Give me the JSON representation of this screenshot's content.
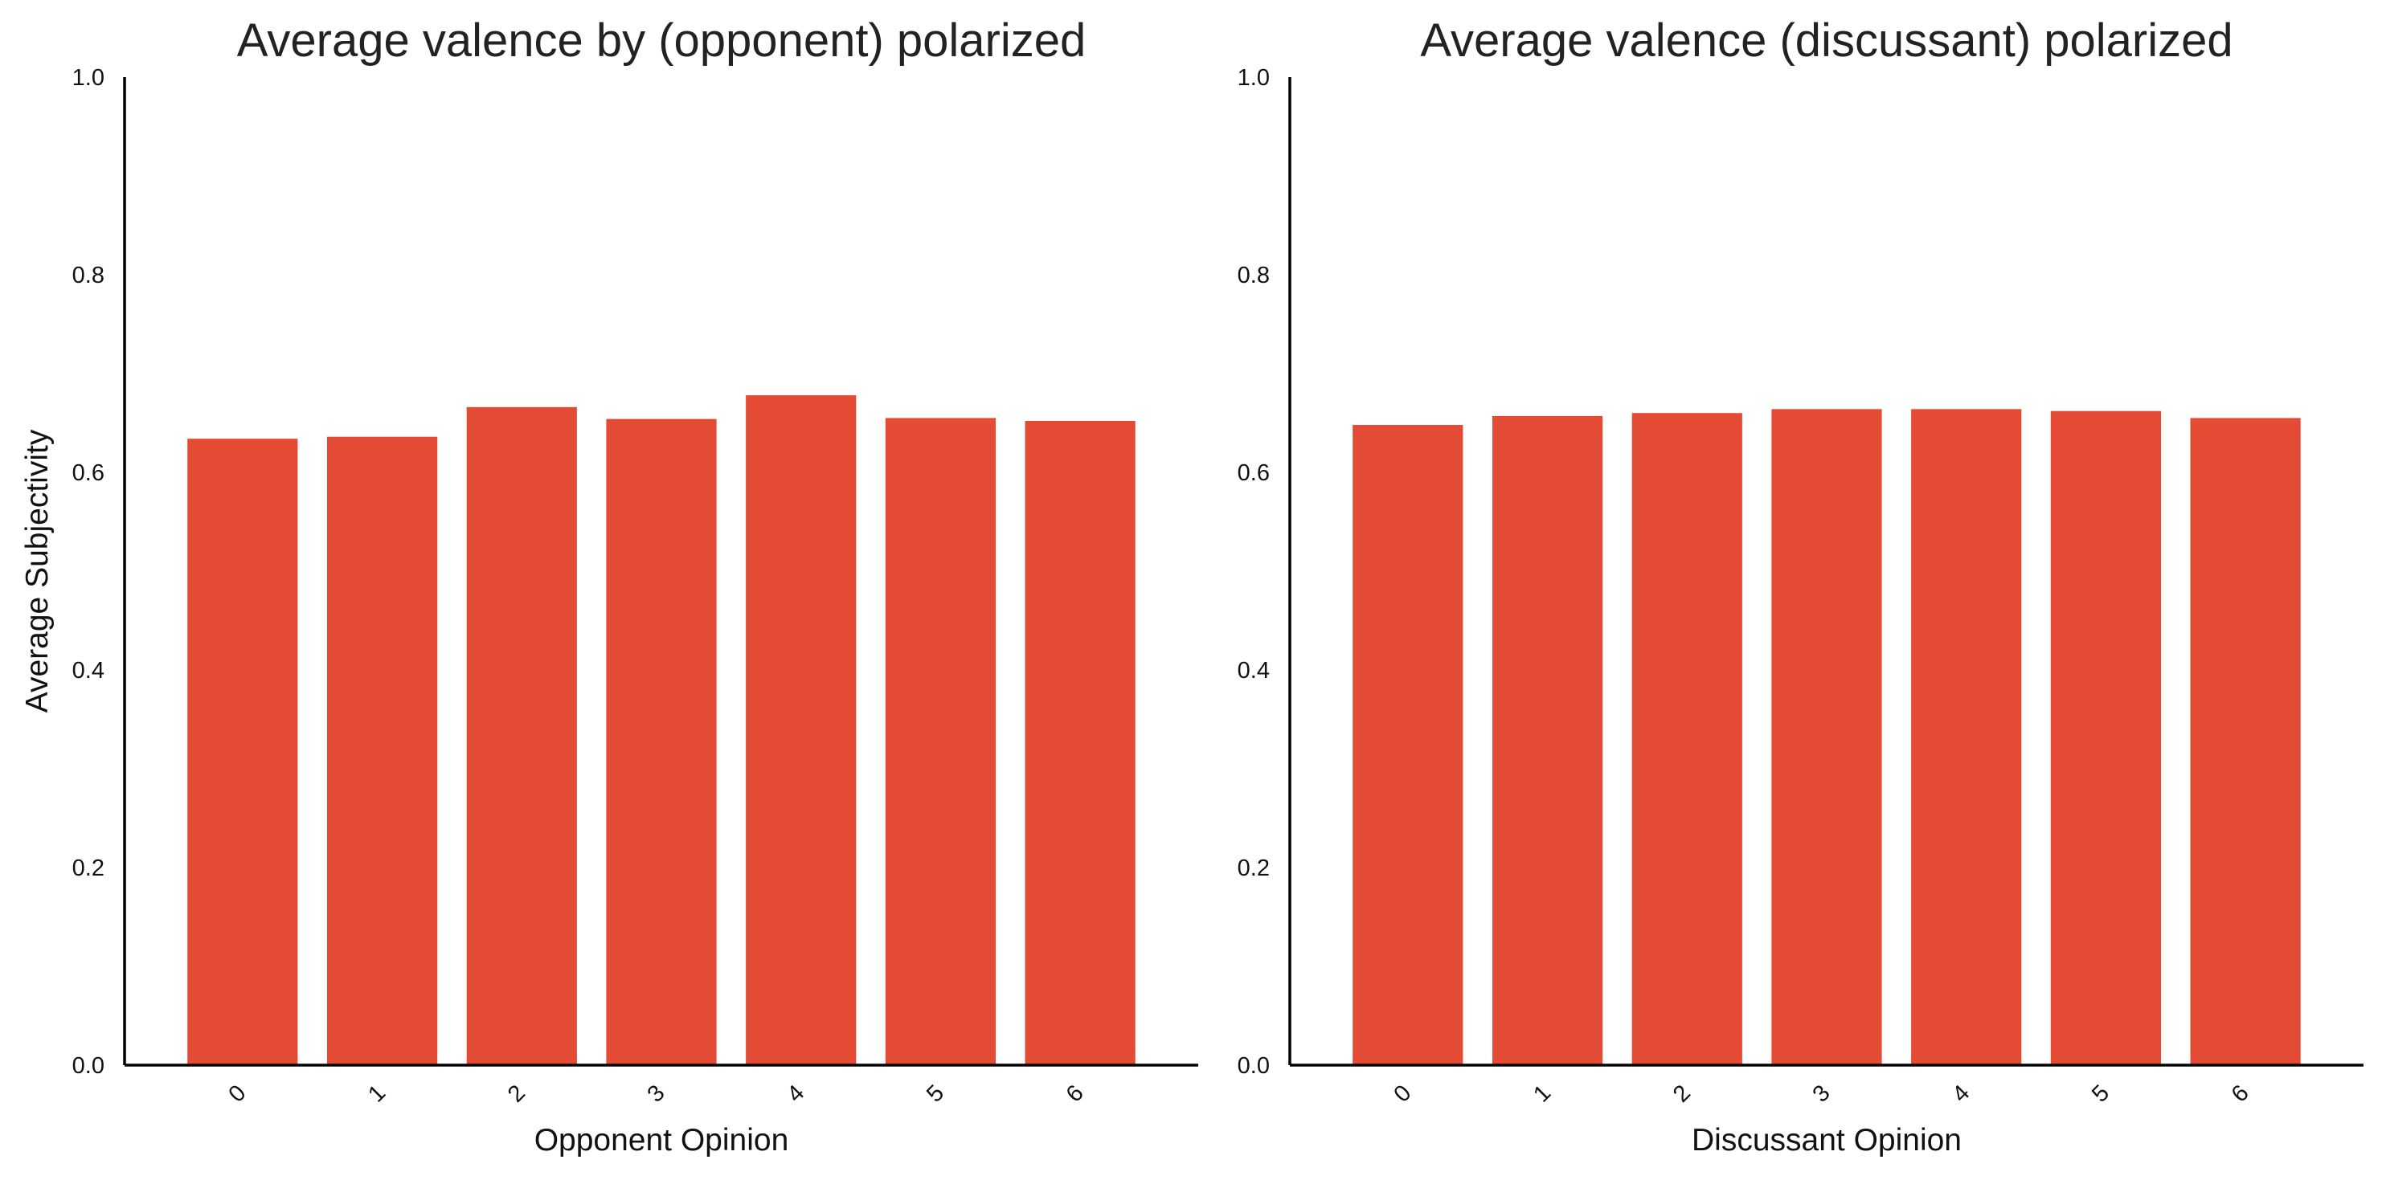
{
  "chart_data": [
    {
      "type": "bar",
      "title": "Average valence by (opponent) polarized",
      "xlabel": "Opponent Opinion",
      "ylabel": "Average Subjectivity",
      "categories": [
        "0",
        "1",
        "2",
        "3",
        "4",
        "5",
        "6"
      ],
      "values": [
        0.634,
        0.636,
        0.666,
        0.654,
        0.678,
        0.655,
        0.652
      ],
      "ylim": [
        0,
        1.0
      ],
      "yticks": [
        "0.0",
        "0.2",
        "0.4",
        "0.6",
        "0.8",
        "1.0"
      ],
      "bar_color": "#e34b34",
      "grid": false,
      "legend": "none"
    },
    {
      "type": "bar",
      "title": "Average valence (discussant) polarized",
      "xlabel": "Discussant Opinion",
      "ylabel": "",
      "categories": [
        "0",
        "1",
        "2",
        "3",
        "4",
        "5",
        "6"
      ],
      "values": [
        0.648,
        0.657,
        0.66,
        0.664,
        0.664,
        0.662,
        0.655
      ],
      "ylim": [
        0,
        1.0
      ],
      "yticks": [
        "0.0",
        "0.2",
        "0.4",
        "0.6",
        "0.8",
        "1.0"
      ],
      "bar_color": "#e34b34",
      "grid": false,
      "legend": "none"
    }
  ]
}
